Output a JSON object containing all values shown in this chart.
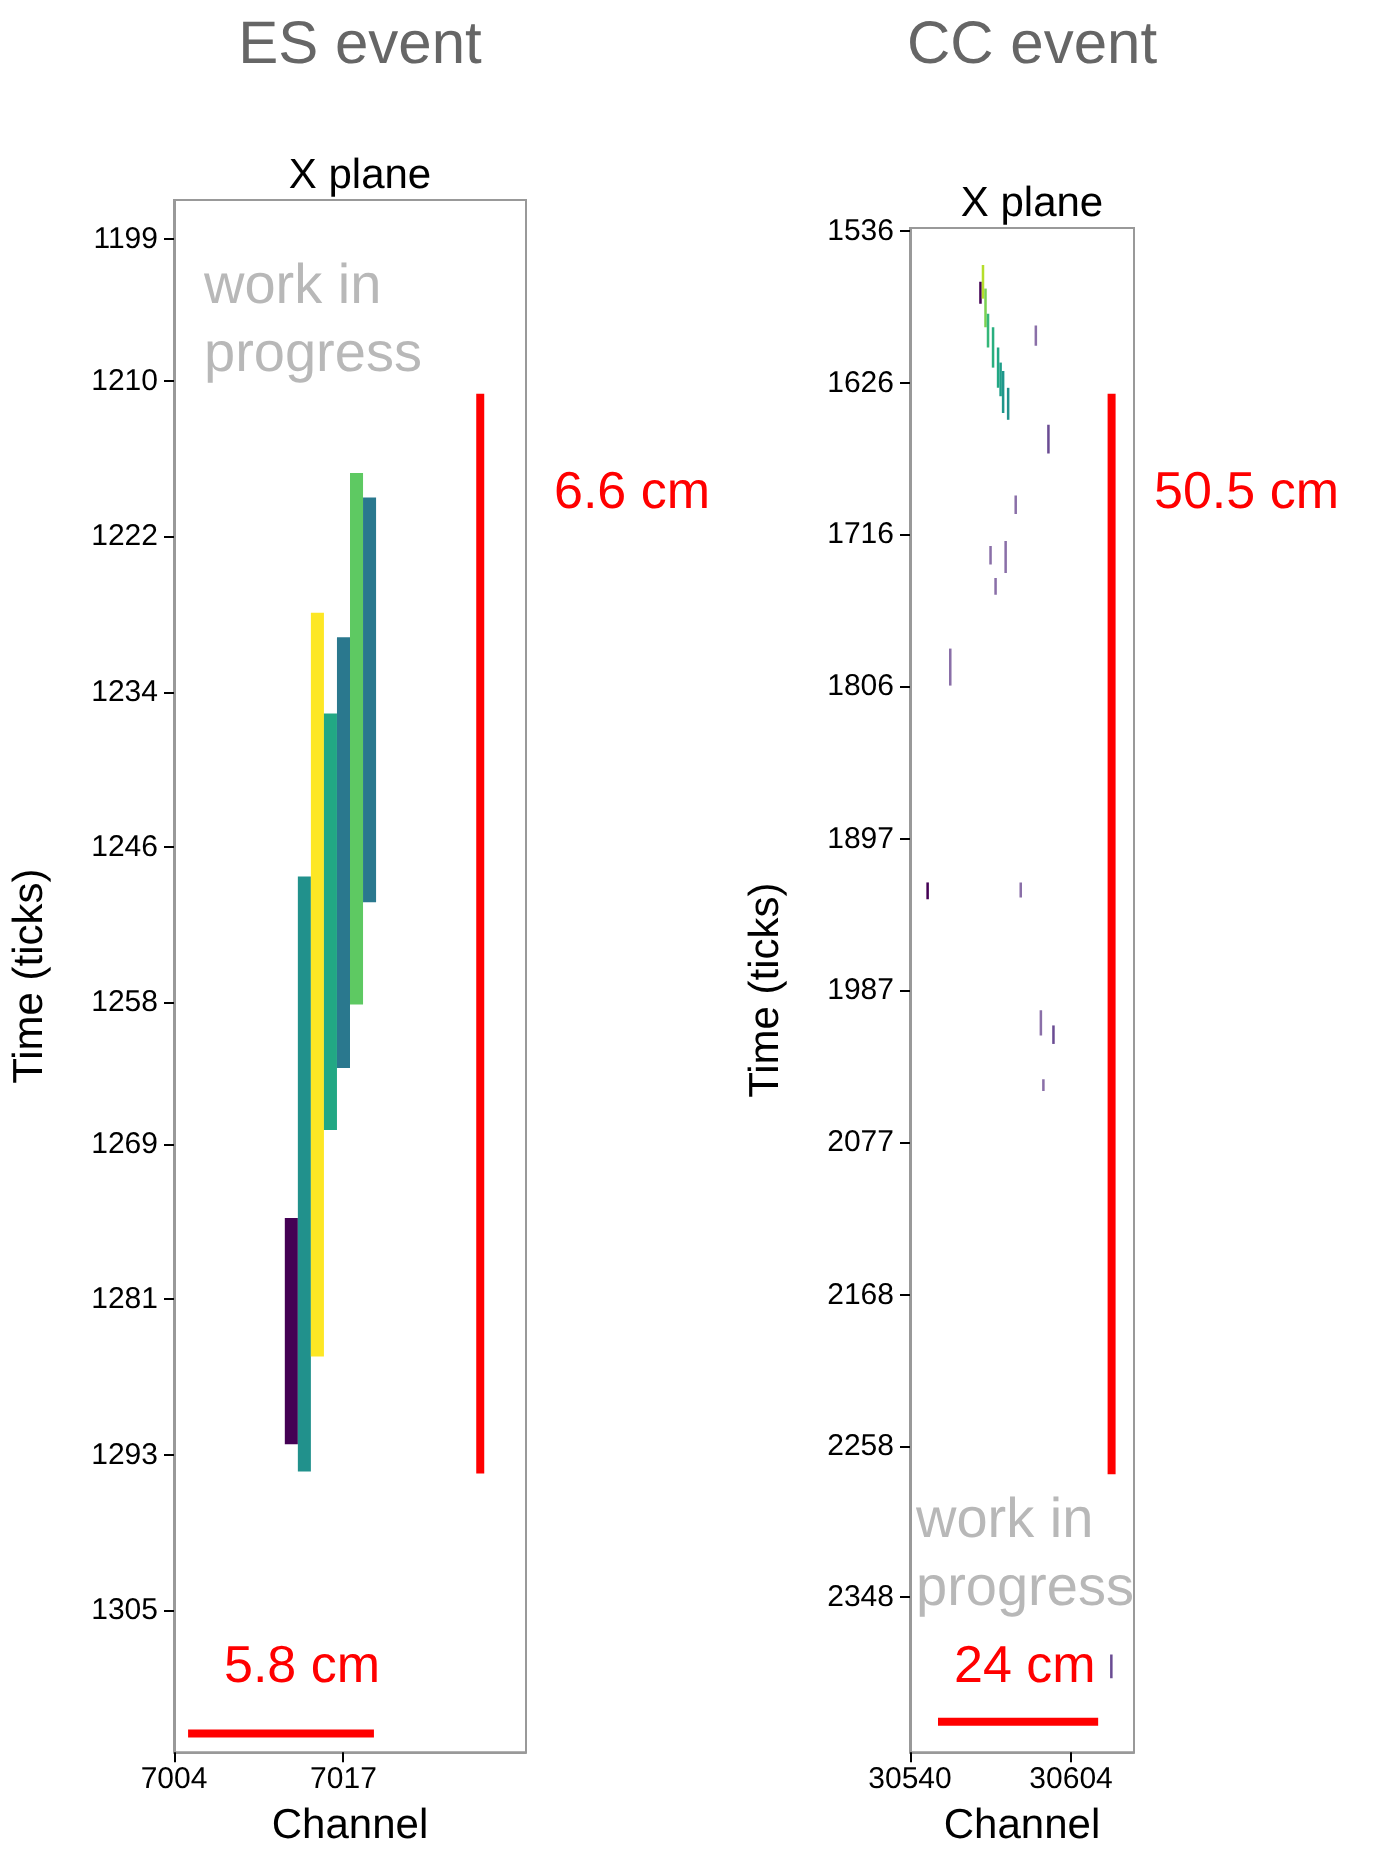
{
  "chart_data": [
    {
      "type": "bar",
      "title": "ES event",
      "subtitle": "X plane",
      "xlabel": "Channel",
      "ylabel": "Time (ticks)",
      "x": [
        7013,
        7014,
        7015,
        7016,
        7017,
        7018,
        7019
      ],
      "base": [
        1274.7,
        1248.3,
        1227.9,
        1235.7,
        1229.8,
        1217.1,
        1219.0
      ],
      "values": [
        17.5,
        46.0,
        57.5,
        32.2,
        33.3,
        41.1,
        31.3
      ],
      "colors": [
        "#440154",
        "#21918c",
        "#fde725",
        "#22a884",
        "#2a788e",
        "#5ec962",
        "#2a788e"
      ],
      "xlim": [
        7004,
        7031
      ],
      "ylim": [
        1316,
        1196
      ],
      "xticks": [
        7004,
        7017
      ],
      "yticks": [
        1199,
        1210,
        1222,
        1234,
        1246,
        1258,
        1269,
        1281,
        1293,
        1305
      ],
      "grid": false,
      "annotations": [
        "work in progress",
        "6.6 cm",
        "5.8 cm"
      ]
    },
    {
      "type": "bar",
      "title": "CC event",
      "subtitle": "X plane",
      "xlabel": "Channel",
      "ylabel": "Time (ticks)",
      "x": [
        30547,
        30556,
        30568,
        30569,
        30570,
        30571,
        30572,
        30573,
        30574,
        30575,
        30576,
        30577,
        30578,
        30579,
        30582,
        30584,
        30590,
        30592,
        30593,
        30595,
        30597,
        30620
      ],
      "base": [
        1923,
        1784,
        1566,
        1556,
        1570,
        1585,
        1723,
        1593,
        1742,
        1605,
        1614,
        1619,
        1720,
        1629,
        1693,
        1923,
        1592,
        1999,
        2040,
        1651,
        2008,
        2382
      ],
      "values": [
        10,
        22,
        13,
        20,
        23,
        20,
        11,
        24,
        10,
        24,
        20,
        25,
        19,
        19,
        11,
        9,
        12,
        15,
        7,
        17,
        11,
        14
      ],
      "colors": [
        "#440154",
        "#8a6fa8",
        "#440154",
        "#b5de2b",
        "#7ad151",
        "#35b779",
        "#8a6fa8",
        "#29af7f",
        "#8a6fa8",
        "#22a884",
        "#1f9e89",
        "#1f968b",
        "#8a6fa8",
        "#21918c",
        "#8a6fa8",
        "#8a6fa8",
        "#8a6fa8",
        "#8a6fa8",
        "#8a6fa8",
        "#6a4c93",
        "#6a4c93",
        "#6a4c93"
      ],
      "xlim": [
        30540,
        30629
      ],
      "ylim": [
        2440,
        1534
      ],
      "xticks": [
        30540,
        30604
      ],
      "yticks": [
        1536,
        1626,
        1716,
        1806,
        1897,
        1987,
        2077,
        2168,
        2258,
        2348
      ],
      "grid": false,
      "annotations": [
        "work in progress",
        "50.5 cm",
        "24 cm"
      ]
    }
  ]
}
